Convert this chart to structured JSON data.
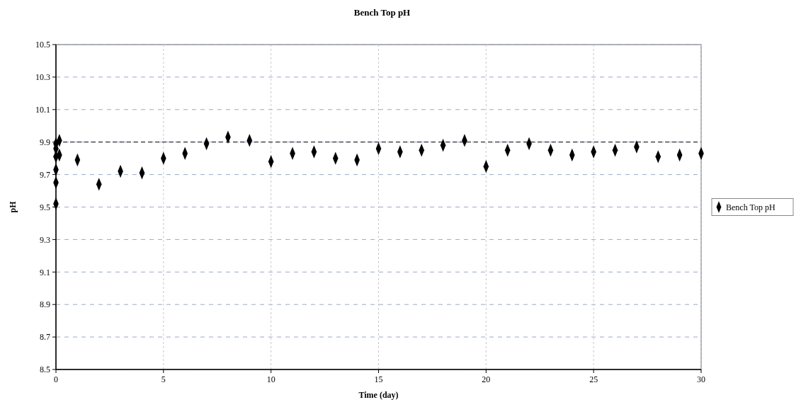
{
  "chart_data": {
    "type": "scatter",
    "title": "Bench Top pH",
    "xlabel": "Time (day)",
    "ylabel": "pH",
    "series": [
      {
        "name": "Bench Top pH",
        "color": "#000000",
        "x": [
          0,
          0,
          0,
          0,
          0,
          0,
          0.16,
          0.16,
          1,
          2,
          3,
          4,
          5,
          6,
          7,
          8,
          9,
          10,
          11,
          12,
          13,
          14,
          15,
          16,
          17,
          18,
          19,
          20,
          21,
          22,
          23,
          24,
          25,
          26,
          27,
          28,
          29,
          30
        ],
        "values": [
          9.89,
          9.86,
          9.81,
          9.73,
          9.65,
          9.52,
          9.91,
          9.82,
          9.79,
          9.64,
          9.72,
          9.71,
          9.8,
          9.83,
          9.89,
          9.93,
          9.91,
          9.78,
          9.83,
          9.84,
          9.8,
          9.79,
          9.86,
          9.84,
          9.85,
          9.88,
          9.91,
          9.75,
          9.85,
          9.89,
          9.85,
          9.82,
          9.84,
          9.85,
          9.87,
          9.81,
          9.82,
          9.83
        ]
      }
    ],
    "xlim": [
      0,
      30
    ],
    "xticks": [
      0,
      5,
      10,
      15,
      20,
      25,
      30
    ],
    "ylim": [
      8.5,
      10.5
    ],
    "yticks": [
      8.5,
      8.7,
      8.9,
      9.1,
      9.3,
      9.5,
      9.7,
      9.9,
      10.1,
      10.3,
      10.5
    ],
    "ref_lines": [
      {
        "axis": "y",
        "value": 9.9,
        "color": "#333333",
        "line_style": "dashed"
      }
    ],
    "grid": true,
    "legend": "right",
    "marker": "diamond"
  }
}
